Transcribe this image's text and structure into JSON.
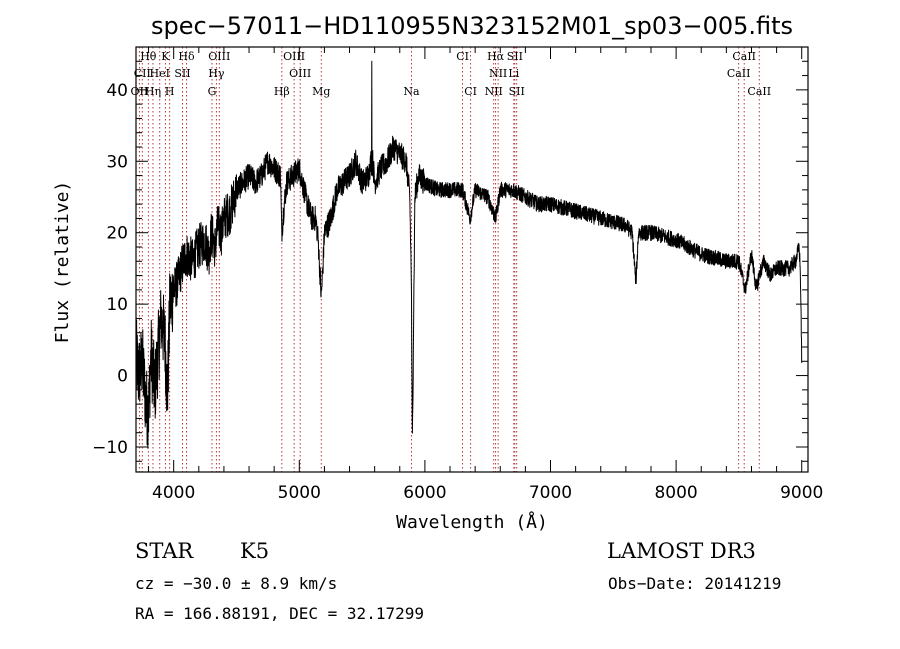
{
  "chart_data": {
    "type": "line",
    "title": "spec−57011−HD110955N323152M01_sp03−005.fits",
    "xlabel": "Wavelength (Å)",
    "ylabel": "Flux (relative)",
    "xlim": [
      3700,
      9050
    ],
    "ylim": [
      -13.5,
      46
    ],
    "xticks": [
      4000,
      5000,
      6000,
      7000,
      8000,
      9000
    ],
    "yticks": [
      -10,
      0,
      10,
      20,
      30,
      40
    ],
    "ytick_labels": [
      "−10",
      "0",
      "10",
      "20",
      "30",
      "40"
    ],
    "grid": false,
    "spectrum_anchors": {
      "x": [
        3700,
        3720,
        3750,
        3780,
        3800,
        3820,
        3850,
        3880,
        3900,
        3930,
        3950,
        3970,
        4000,
        4030,
        4060,
        4100,
        4150,
        4200,
        4250,
        4280,
        4300,
        4330,
        4350,
        4380,
        4400,
        4450,
        4500,
        4550,
        4600,
        4650,
        4700,
        4750,
        4800,
        4850,
        4860,
        4880,
        4900,
        4950,
        5000,
        5050,
        5080,
        5100,
        5130,
        5150,
        5175,
        5190,
        5200,
        5250,
        5300,
        5350,
        5400,
        5450,
        5500,
        5550,
        5580,
        5600,
        5650,
        5700,
        5750,
        5800,
        5850,
        5880,
        5893,
        5900,
        5920,
        5950,
        6000,
        6100,
        6200,
        6300,
        6360,
        6400,
        6500,
        6563,
        6600,
        6700,
        6800,
        6900,
        7000,
        7200,
        7400,
        7600,
        7650,
        7680,
        7700,
        7800,
        8000,
        8200,
        8400,
        8500,
        8550,
        8600,
        8640,
        8660,
        8700,
        8750,
        8800,
        8850,
        8900,
        8950,
        8980,
        8990,
        8995,
        9000
      ],
      "y": [
        3,
        0,
        2,
        -4,
        -5,
        3,
        -2,
        4,
        8,
        5,
        -3,
        10,
        12,
        13,
        15,
        17,
        16,
        18,
        19,
        17,
        20,
        18,
        21,
        20,
        22,
        23,
        26,
        27,
        28,
        27,
        28,
        30,
        29,
        28,
        20,
        24,
        27,
        28,
        29,
        25,
        23,
        22,
        22,
        19,
        11,
        16,
        20,
        22,
        26,
        27,
        28,
        30,
        27,
        28,
        31,
        27,
        29,
        30,
        32,
        31,
        30,
        25,
        12,
        -10,
        25,
        28,
        27,
        26,
        26,
        26,
        22,
        26,
        25,
        22,
        26,
        26,
        25,
        24,
        24,
        23,
        22,
        21,
        20,
        13,
        20,
        20,
        19,
        17,
        16,
        16,
        12,
        17,
        12,
        14,
        16,
        14,
        15,
        15,
        15,
        16,
        18,
        14,
        8,
        2
      ]
    },
    "spectral_lines": [
      {
        "label": "Hθ",
        "wavelength": 3798,
        "row": 0
      },
      {
        "label": "K",
        "wavelength": 3934,
        "row": 0
      },
      {
        "label": "Hδ",
        "wavelength": 4102,
        "row": 0
      },
      {
        "label": "OIII",
        "wavelength": 4363,
        "row": 0
      },
      {
        "label": "OIII",
        "wavelength": 4959,
        "row": 0
      },
      {
        "label": "CI",
        "wavelength": 6300,
        "row": 0
      },
      {
        "label": "Hα",
        "wavelength": 6563,
        "row": 0
      },
      {
        "label": "SII",
        "wavelength": 6716,
        "row": 0
      },
      {
        "label": "CaII",
        "wavelength": 8542,
        "row": 0
      },
      {
        "label": "CII",
        "wavelength": 3750,
        "row": 1
      },
      {
        "label": "HeI",
        "wavelength": 3889,
        "row": 1
      },
      {
        "label": "SII",
        "wavelength": 4070,
        "row": 1
      },
      {
        "label": "Hγ",
        "wavelength": 4340,
        "row": 1
      },
      {
        "label": "OIII",
        "wavelength": 5007,
        "row": 1
      },
      {
        "label": "NII",
        "wavelength": 6583,
        "row": 1
      },
      {
        "label": "Li",
        "wavelength": 6708,
        "row": 1
      },
      {
        "label": "CaII",
        "wavelength": 8498,
        "row": 1
      },
      {
        "label": "OII",
        "wavelength": 3727,
        "row": 2
      },
      {
        "label": "Hη",
        "wavelength": 3835,
        "row": 2
      },
      {
        "label": "H",
        "wavelength": 3968,
        "row": 2
      },
      {
        "label": "G",
        "wavelength": 4305,
        "row": 2
      },
      {
        "label": "Hβ",
        "wavelength": 4861,
        "row": 2
      },
      {
        "label": "Mg",
        "wavelength": 5175,
        "row": 2
      },
      {
        "label": "Na",
        "wavelength": 5893,
        "row": 2
      },
      {
        "label": "CI",
        "wavelength": 6364,
        "row": 2
      },
      {
        "label": "NII",
        "wavelength": 6548,
        "row": 2
      },
      {
        "label": "SII",
        "wavelength": 6731,
        "row": 2
      },
      {
        "label": "CaII",
        "wavelength": 8662,
        "row": 2
      }
    ]
  },
  "info": {
    "object_class": "STAR",
    "subclass": "K5",
    "survey": "LAMOST DR3",
    "redshift": "cz = −30.0 ± 8.9 km/s",
    "obs_date": "Obs−Date: 20141219",
    "coordinates": "RA = 166.88191, DEC =  32.17299"
  }
}
